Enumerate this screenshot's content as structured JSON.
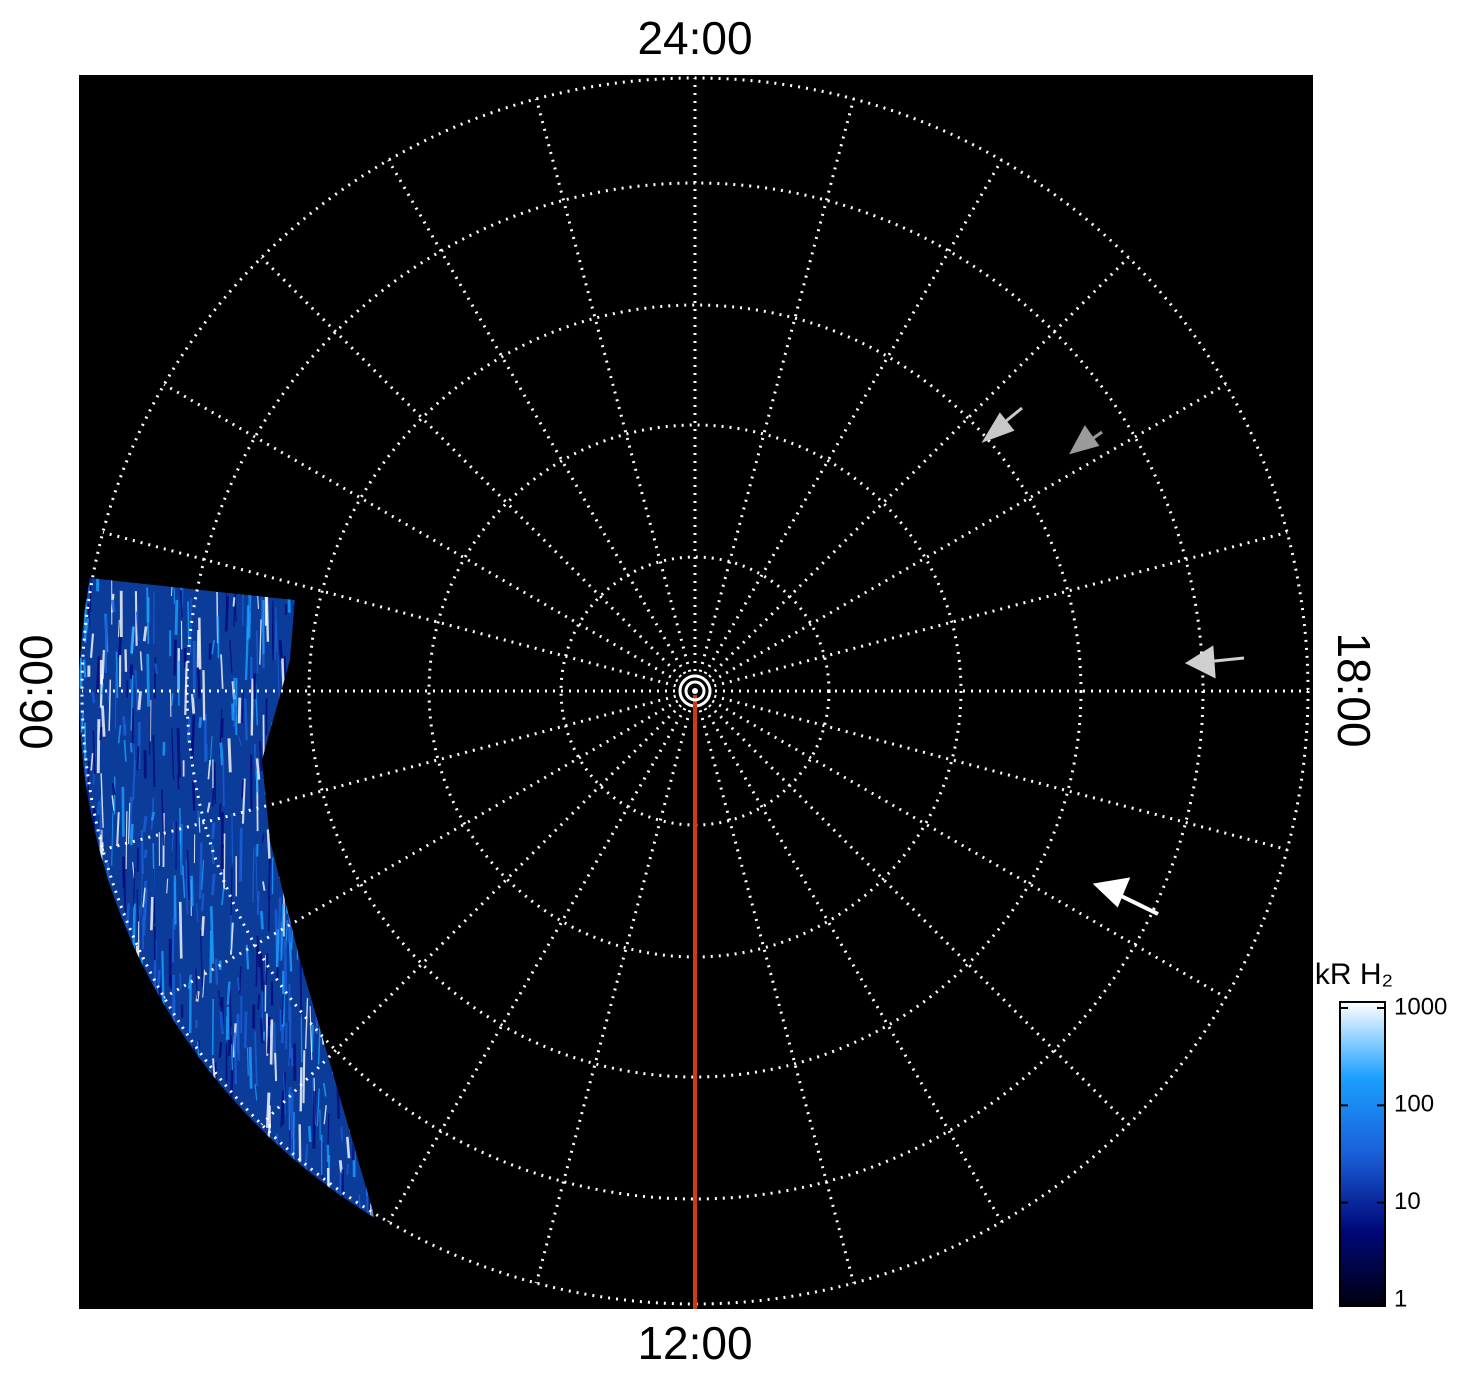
{
  "chart_data": {
    "type": "polar",
    "labels": {
      "top": "24:00",
      "bottom": "12:00",
      "left": "06:00",
      "right": "18:00"
    },
    "colorbar": {
      "label": "kR H₂",
      "scale": "log",
      "lim": [
        1,
        1000
      ],
      "ticks": [
        1,
        10,
        100,
        1000
      ],
      "colors": [
        "#000010",
        "#00087a",
        "#1a5fd8",
        "#1aa0ff",
        "#ffffff"
      ]
    }
  }
}
